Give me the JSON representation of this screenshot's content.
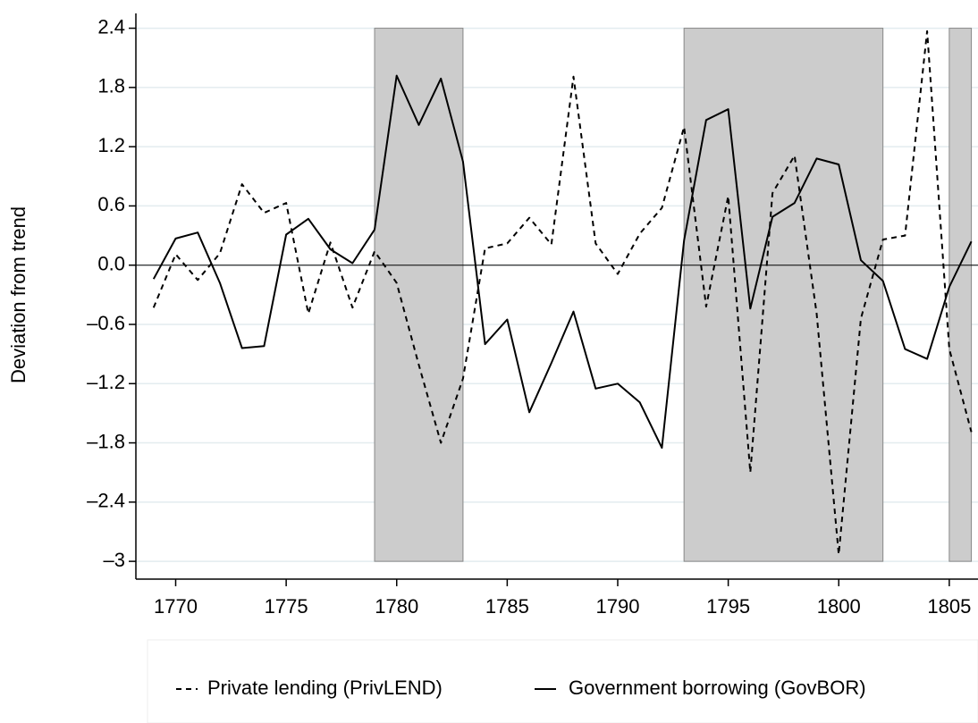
{
  "chart_data": {
    "type": "line",
    "y_label": "Deviation from trend",
    "x": [
      1769,
      1770,
      1771,
      1772,
      1773,
      1774,
      1775,
      1776,
      1777,
      1778,
      1779,
      1780,
      1781,
      1782,
      1783,
      1784,
      1785,
      1786,
      1787,
      1788,
      1789,
      1790,
      1791,
      1792,
      1793,
      1794,
      1795,
      1796,
      1797,
      1798,
      1799,
      1800,
      1801,
      1802,
      1803,
      1804,
      1805,
      1806
    ],
    "series": [
      {
        "name": "Private lending (PrivLEND)",
        "color": "#000000",
        "dash": true,
        "values": [
          -0.43,
          0.11,
          -0.15,
          0.12,
          0.82,
          0.53,
          0.63,
          -0.49,
          0.23,
          -0.43,
          0.14,
          -0.18,
          -1.01,
          -1.8,
          -1.15,
          0.17,
          0.22,
          0.48,
          0.21,
          1.91,
          0.22,
          -0.09,
          0.32,
          0.58,
          1.4,
          -0.42,
          0.7,
          -2.1,
          0.73,
          1.11,
          -0.49,
          -2.93,
          -0.54,
          0.26,
          0.3,
          2.37,
          -0.85,
          -1.69
        ]
      },
      {
        "name": "Government borrowing (GovBOR)",
        "color": "#000000",
        "dash": false,
        "values": [
          -0.14,
          0.27,
          0.33,
          -0.18,
          -0.84,
          -0.82,
          0.31,
          0.47,
          0.16,
          0.02,
          0.36,
          1.92,
          1.42,
          1.89,
          1.05,
          -0.8,
          -0.55,
          -1.49,
          -0.99,
          -0.47,
          -1.25,
          -1.2,
          -1.39,
          -1.85,
          0.25,
          1.47,
          1.58,
          -0.44,
          0.49,
          0.63,
          1.08,
          1.02,
          0.05,
          -0.16,
          -0.85,
          -0.95,
          -0.22,
          0.24
        ]
      }
    ],
    "shaded": [
      {
        "start": 1779,
        "end": 1783
      },
      {
        "start": 1793,
        "end": 1802
      },
      {
        "start": 1805,
        "end": 1806
      }
    ],
    "shade_color": "#cccccc",
    "xlim": [
      1768.2,
      1806.3
    ],
    "xticks": [
      1770,
      1775,
      1780,
      1785,
      1790,
      1795,
      1800,
      1805
    ],
    "ylim": [
      -3.18,
      2.55
    ],
    "yticks": [
      {
        "value": -3,
        "label": "–3"
      },
      {
        "value": -2.4,
        "label": "–2.4"
      },
      {
        "value": -1.8,
        "label": "–1.8"
      },
      {
        "value": -1.2,
        "label": "–1.2"
      },
      {
        "value": -0.6,
        "label": "–0.6"
      },
      {
        "value": 0,
        "label": "0.0"
      },
      0.6,
      1.2,
      1.8,
      2.4
    ],
    "grid": true,
    "legend": "bottom"
  }
}
